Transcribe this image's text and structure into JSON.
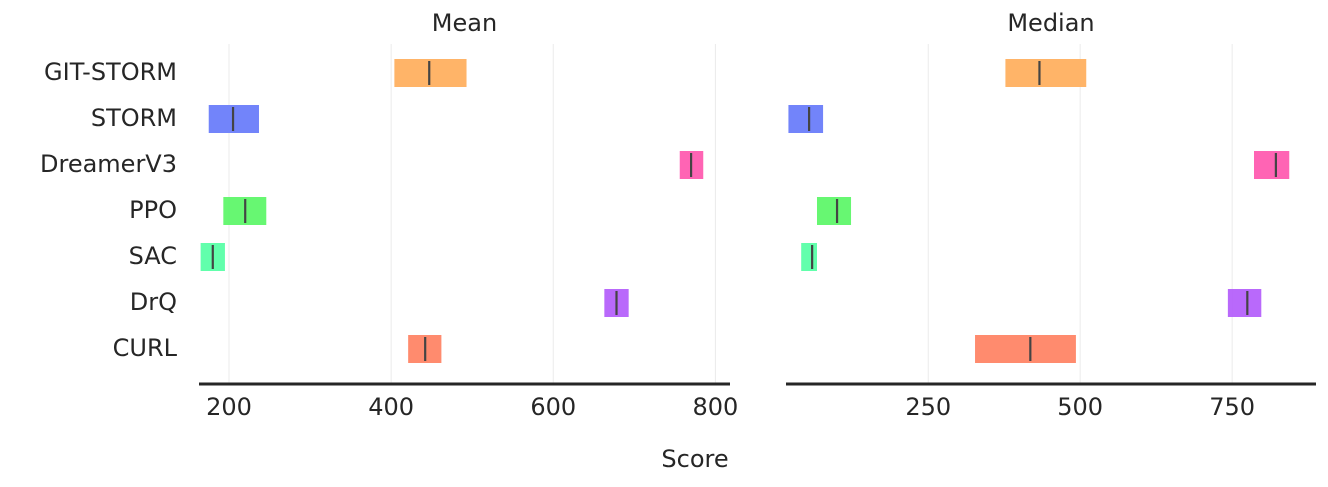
{
  "chart_data": [
    {
      "type": "interval",
      "title": "Mean",
      "xlabel": "Score",
      "categories": [
        "GIT-STORM",
        "STORM",
        "DreamerV3",
        "PPO",
        "SAC",
        "DrQ",
        "CURL"
      ],
      "lower": [
        404,
        175,
        756,
        193,
        165,
        663,
        421
      ],
      "upper": [
        493,
        237,
        785,
        246,
        195,
        693,
        462
      ],
      "values": [
        447,
        205,
        770,
        220,
        180,
        678,
        442
      ],
      "colors": [
        "#ffb060",
        "#6a7dfa",
        "#ff5cb0",
        "#5ff76a",
        "#5affa8",
        "#b561fb",
        "#ff8566"
      ],
      "xlim": [
        163,
        818
      ],
      "xticks": [
        200,
        400,
        600,
        800
      ],
      "grid": true
    },
    {
      "type": "interval",
      "title": "Median",
      "lower": [
        377,
        20,
        786,
        67,
        41,
        743,
        327
      ],
      "upper": [
        510,
        77,
        844,
        123,
        67,
        798,
        493
      ],
      "values": [
        433,
        54,
        822,
        100,
        59,
        775,
        418
      ],
      "colors": [
        "#ffb060",
        "#6a7dfa",
        "#ff5cb0",
        "#5ff76a",
        "#5affa8",
        "#b561fb",
        "#ff8566"
      ],
      "xlim": [
        16,
        888
      ],
      "xticks": [
        250,
        500,
        750
      ],
      "grid": true
    }
  ]
}
